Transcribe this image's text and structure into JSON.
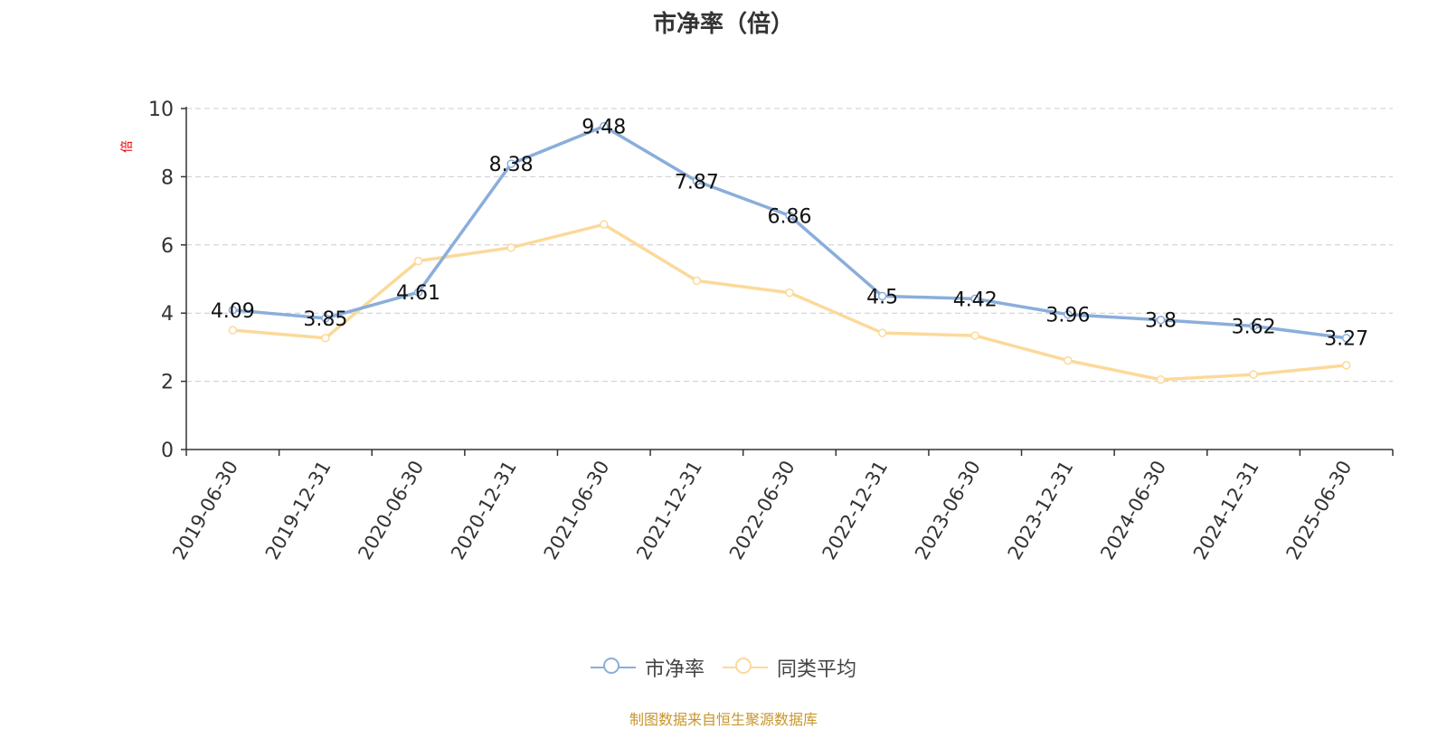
{
  "chart_data": {
    "type": "line",
    "title": "市净率（倍）",
    "ylabel": "倍",
    "categories": [
      "2019-06-30",
      "2019-12-31",
      "2020-06-30",
      "2020-12-31",
      "2021-06-30",
      "2021-12-31",
      "2022-06-30",
      "2022-12-31",
      "2023-06-30",
      "2023-12-31",
      "2024-06-30",
      "2024-12-31",
      "2025-06-30"
    ],
    "ylim": [
      0,
      10
    ],
    "yticks": [
      0,
      2,
      4,
      6,
      8,
      10
    ],
    "grid": true,
    "legend_position": "bottom",
    "series": [
      {
        "name": "市净率",
        "color": "#8aaedb",
        "values": [
          4.09,
          3.85,
          4.61,
          8.38,
          9.48,
          7.87,
          6.86,
          4.5,
          4.42,
          3.96,
          3.8,
          3.62,
          3.27
        ],
        "labels": [
          "4.09",
          "3.85",
          "4.61",
          "8.38",
          "9.48",
          "7.87",
          "6.86",
          "4.5",
          "4.42",
          "3.96",
          "3.8",
          "3.62",
          "3.27"
        ]
      },
      {
        "name": "同类平均",
        "color": "#fcd99a",
        "values": [
          3.5,
          3.27,
          5.53,
          5.92,
          6.6,
          4.95,
          4.6,
          3.42,
          3.34,
          2.61,
          2.05,
          2.2,
          2.47
        ]
      }
    ]
  },
  "source": {
    "text": "制图数据来自恒生聚源数据库",
    "color": "#c8962c"
  }
}
